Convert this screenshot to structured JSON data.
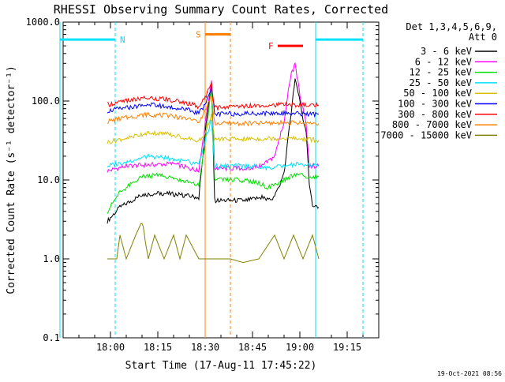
{
  "chart_data": {
    "type": "line",
    "title": "RHESSI Observing Summary Count Rates, Corrected",
    "xlabel": "Start Time (17-Aug-11 17:45:22)",
    "ylabel": "Corrected Count Rate (s⁻¹ detector⁻¹)",
    "yscale": "log",
    "ylim": [
      0.1,
      1000.0
    ],
    "xlim": [
      "17:45:22",
      "19:25"
    ],
    "y_ticks": [
      "0.1",
      "1.0",
      "10.0",
      "100.0",
      "1000.0"
    ],
    "x_ticks": [
      "18:00",
      "18:15",
      "18:30",
      "18:45",
      "19:00",
      "19:15"
    ],
    "x_tick_minutes": [
      0,
      15,
      30,
      45,
      60,
      75
    ],
    "x_tick_origin": "18:00",
    "timestamp": "19-Oct-2021 08:56",
    "legend": {
      "placement": "right",
      "header": [
        "Det 1,3,4,5,6,9,",
        "Att 0"
      ]
    },
    "series": [
      {
        "name": "3 - 6 keV",
        "color": "#000000",
        "values": [
          {
            "t": -1,
            "v": 3.0
          },
          {
            "t": 3,
            "v": 4.5
          },
          {
            "t": 10,
            "v": 6.5
          },
          {
            "t": 16,
            "v": 6.8
          },
          {
            "t": 22,
            "v": 6.5
          },
          {
            "t": 28,
            "v": 6.0
          },
          {
            "t": 30,
            "v": 40
          },
          {
            "t": 32,
            "v": 180
          },
          {
            "t": 33,
            "v": 5.5
          },
          {
            "t": 43,
            "v": 5.5
          },
          {
            "t": 48,
            "v": 6.0
          },
          {
            "t": 50,
            "v": 5.5
          },
          {
            "t": 52,
            "v": 6.0
          },
          {
            "t": 55,
            "v": 12
          },
          {
            "t": 57,
            "v": 60
          },
          {
            "t": 58.5,
            "v": 190
          },
          {
            "t": 59.5,
            "v": 130
          },
          {
            "t": 61,
            "v": 55
          },
          {
            "t": 62,
            "v": 40
          },
          {
            "t": 63,
            "v": 9
          },
          {
            "t": 64,
            "v": 4.5
          },
          {
            "t": 66,
            "v": 4.5
          }
        ]
      },
      {
        "name": "6 - 12 keV",
        "color": "#ff00ff",
        "values": [
          {
            "t": -1,
            "v": 13
          },
          {
            "t": 5,
            "v": 15
          },
          {
            "t": 12,
            "v": 15.5
          },
          {
            "t": 20,
            "v": 16
          },
          {
            "t": 25,
            "v": 14
          },
          {
            "t": 28,
            "v": 13
          },
          {
            "t": 30,
            "v": 50
          },
          {
            "t": 32,
            "v": 180
          },
          {
            "t": 33,
            "v": 14
          },
          {
            "t": 43,
            "v": 14
          },
          {
            "t": 48,
            "v": 15
          },
          {
            "t": 52,
            "v": 20
          },
          {
            "t": 55,
            "v": 55
          },
          {
            "t": 57,
            "v": 200
          },
          {
            "t": 58.5,
            "v": 290
          },
          {
            "t": 60,
            "v": 120
          },
          {
            "t": 62,
            "v": 50
          },
          {
            "t": 63,
            "v": 15
          },
          {
            "t": 66,
            "v": 15
          }
        ]
      },
      {
        "name": "12 - 25 keV",
        "color": "#00e000",
        "values": [
          {
            "t": -1,
            "v": 4.0
          },
          {
            "t": 3,
            "v": 7
          },
          {
            "t": 10,
            "v": 11
          },
          {
            "t": 16,
            "v": 11.5
          },
          {
            "t": 22,
            "v": 10
          },
          {
            "t": 28,
            "v": 8.5
          },
          {
            "t": 30,
            "v": 30
          },
          {
            "t": 32,
            "v": 150
          },
          {
            "t": 33,
            "v": 10
          },
          {
            "t": 40,
            "v": 10
          },
          {
            "t": 46,
            "v": 9.5
          },
          {
            "t": 50,
            "v": 8
          },
          {
            "t": 55,
            "v": 10
          },
          {
            "t": 59,
            "v": 12
          },
          {
            "t": 62,
            "v": 11
          },
          {
            "t": 66,
            "v": 11
          }
        ]
      },
      {
        "name": "25 - 50 keV",
        "color": "#00e0ff",
        "values": [
          {
            "t": -1,
            "v": 15
          },
          {
            "t": 5,
            "v": 17
          },
          {
            "t": 12,
            "v": 20
          },
          {
            "t": 18,
            "v": 19
          },
          {
            "t": 24,
            "v": 17
          },
          {
            "t": 28,
            "v": 16
          },
          {
            "t": 30,
            "v": 30
          },
          {
            "t": 32,
            "v": 60
          },
          {
            "t": 33,
            "v": 15
          },
          {
            "t": 45,
            "v": 15
          },
          {
            "t": 50,
            "v": 14
          },
          {
            "t": 55,
            "v": 15
          },
          {
            "t": 60,
            "v": 16
          },
          {
            "t": 66,
            "v": 15
          }
        ]
      },
      {
        "name": "50 - 100 keV",
        "color": "#d8c000",
        "values": [
          {
            "t": -1,
            "v": 30
          },
          {
            "t": 5,
            "v": 34
          },
          {
            "t": 12,
            "v": 40
          },
          {
            "t": 18,
            "v": 38
          },
          {
            "t": 24,
            "v": 34
          },
          {
            "t": 28,
            "v": 31
          },
          {
            "t": 30,
            "v": 40
          },
          {
            "t": 32,
            "v": 65
          },
          {
            "t": 33,
            "v": 33
          },
          {
            "t": 45,
            "v": 33
          },
          {
            "t": 55,
            "v": 34
          },
          {
            "t": 66,
            "v": 32
          }
        ]
      },
      {
        "name": "100 - 300 keV",
        "color": "#0000ff",
        "values": [
          {
            "t": -1,
            "v": 75
          },
          {
            "t": 5,
            "v": 82
          },
          {
            "t": 12,
            "v": 90
          },
          {
            "t": 18,
            "v": 85
          },
          {
            "t": 24,
            "v": 78
          },
          {
            "t": 28,
            "v": 70
          },
          {
            "t": 30,
            "v": 90
          },
          {
            "t": 32,
            "v": 150
          },
          {
            "t": 33,
            "v": 68
          },
          {
            "t": 45,
            "v": 70
          },
          {
            "t": 55,
            "v": 70
          },
          {
            "t": 66,
            "v": 68
          }
        ]
      },
      {
        "name": "300 - 800 keV",
        "color": "#ff0000",
        "values": [
          {
            "t": -1,
            "v": 90
          },
          {
            "t": 5,
            "v": 100
          },
          {
            "t": 12,
            "v": 110
          },
          {
            "t": 18,
            "v": 105
          },
          {
            "t": 24,
            "v": 95
          },
          {
            "t": 28,
            "v": 85
          },
          {
            "t": 30,
            "v": 110
          },
          {
            "t": 32,
            "v": 170
          },
          {
            "t": 33,
            "v": 82
          },
          {
            "t": 45,
            "v": 88
          },
          {
            "t": 55,
            "v": 90
          },
          {
            "t": 66,
            "v": 88
          }
        ]
      },
      {
        "name": "800 - 7000 keV",
        "color": "#ff8000",
        "values": [
          {
            "t": -1,
            "v": 55
          },
          {
            "t": 5,
            "v": 62
          },
          {
            "t": 12,
            "v": 68
          },
          {
            "t": 18,
            "v": 65
          },
          {
            "t": 24,
            "v": 60
          },
          {
            "t": 28,
            "v": 55
          },
          {
            "t": 30,
            "v": 75
          },
          {
            "t": 32,
            "v": 120
          },
          {
            "t": 33,
            "v": 52
          },
          {
            "t": 45,
            "v": 52
          },
          {
            "t": 55,
            "v": 53
          },
          {
            "t": 66,
            "v": 52
          }
        ]
      },
      {
        "name": "7000 - 15000 keV",
        "color": "#808000",
        "values": [
          {
            "t": -1,
            "v": 1.0
          },
          {
            "t": 2,
            "v": 1.0
          },
          {
            "t": 3,
            "v": 2.0
          },
          {
            "t": 5,
            "v": 1.0
          },
          {
            "t": 8,
            "v": 2.0
          },
          {
            "t": 10,
            "v": 3.0
          },
          {
            "t": 12,
            "v": 1.0
          },
          {
            "t": 14,
            "v": 2.0
          },
          {
            "t": 17,
            "v": 1.0
          },
          {
            "t": 20,
            "v": 2.0
          },
          {
            "t": 22,
            "v": 1.0
          },
          {
            "t": 24,
            "v": 2.0
          },
          {
            "t": 28,
            "v": 1.0
          },
          {
            "t": 33,
            "v": 1.0
          },
          {
            "t": 38,
            "v": 1.0
          },
          {
            "t": 42,
            "v": 0.9
          },
          {
            "t": 47,
            "v": 1.0
          },
          {
            "t": 52,
            "v": 2.0
          },
          {
            "t": 55,
            "v": 1.0
          },
          {
            "t": 58,
            "v": 2.0
          },
          {
            "t": 61,
            "v": 1.0
          },
          {
            "t": 64,
            "v": 2.0
          },
          {
            "t": 66,
            "v": 1.0
          }
        ]
      }
    ],
    "annotations": [
      {
        "label": "N",
        "color": "#00e0ff",
        "value": 600,
        "start": -16,
        "end": 1.5
      },
      {
        "label": "",
        "color": "#00e0ff",
        "value": 600,
        "start": 65,
        "end": 80
      },
      {
        "label": "S",
        "color": "#ff8000",
        "value": 700,
        "start": 30,
        "end": 38
      },
      {
        "label": "F",
        "color": "#ff0000",
        "value": 500,
        "start": 53,
        "end": 61
      }
    ],
    "vertical_lines": [
      {
        "color": "#00e0ff",
        "minutes": -16,
        "dashed": false
      },
      {
        "color": "#00e0ff",
        "minutes": 1.5,
        "dashed": true
      },
      {
        "color": "#ff8000",
        "minutes": 30,
        "dashed": false
      },
      {
        "color": "#ff8000",
        "minutes": 38,
        "dashed": true
      },
      {
        "color": "#00e0ff",
        "minutes": 65,
        "dashed": false
      },
      {
        "color": "#00e0ff",
        "minutes": 80,
        "dashed": true
      }
    ]
  }
}
